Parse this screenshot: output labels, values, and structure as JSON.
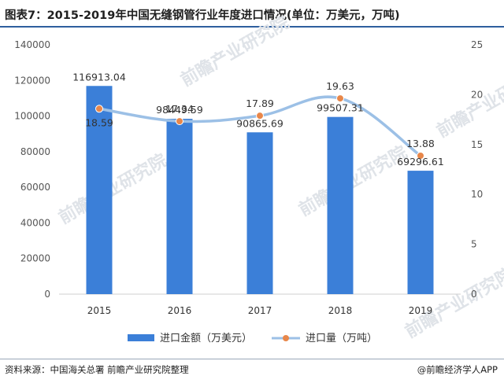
{
  "header": {
    "title": "图表7：2015-2019年中国无缝钢管行业年度进口情况(单位：万美元，万吨)"
  },
  "footer": {
    "source": "资料来源：中国海关总署 前瞻产业研究院整理",
    "brand": "@前瞻经济学人APP"
  },
  "watermark": "前瞻产业研究院",
  "colors": {
    "bar": "#3b7fd8",
    "line": "#9cc0e6",
    "marker": "#e8874a",
    "title_rule": "#2e5f9e"
  },
  "chart_data": {
    "type": "bar",
    "categories": [
      "2015",
      "2016",
      "2017",
      "2018",
      "2019"
    ],
    "series": [
      {
        "name": "进口金额（万美元）",
        "type": "bar",
        "axis": "left",
        "values": [
          116913.04,
          98449.59,
          90865.69,
          99507.31,
          69296.61
        ],
        "labels": [
          "116913.04",
          "98449.59",
          "90865.69",
          "99507.31",
          "69296.61"
        ]
      },
      {
        "name": "进口量（万吨）",
        "type": "line",
        "axis": "right",
        "values": [
          18.59,
          17.34,
          17.89,
          19.63,
          13.88
        ],
        "labels": [
          "18.59",
          "17.34",
          "17.89",
          "19.63",
          "13.88"
        ]
      }
    ],
    "left_axis": {
      "ylim": [
        0,
        140000
      ],
      "ticks": [
        "0",
        "20000",
        "40000",
        "60000",
        "80000",
        "100000",
        "120000",
        "140000"
      ]
    },
    "right_axis": {
      "ylim": [
        0,
        25
      ],
      "ticks": [
        "0",
        "5",
        "10",
        "15",
        "20",
        "25"
      ]
    },
    "grid": false,
    "legend": "bottom"
  }
}
